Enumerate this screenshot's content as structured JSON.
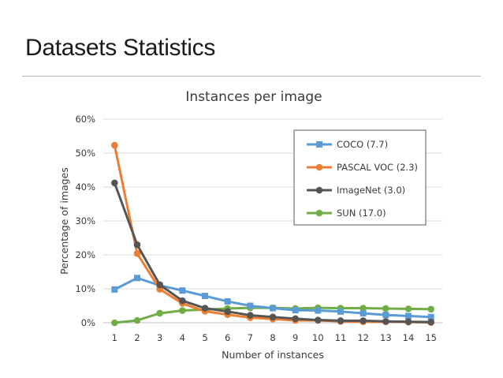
{
  "slide": {
    "title": "Datasets Statistics"
  },
  "chart_data": {
    "type": "line",
    "title": "Instances per image",
    "xlabel": "Number of instances",
    "ylabel": "Percentage of images",
    "x": [
      "1",
      "2",
      "3",
      "4",
      "5",
      "6",
      "7",
      "8",
      "9",
      "10",
      "11",
      "12",
      "13",
      "14",
      "15"
    ],
    "ylim": [
      0,
      60
    ],
    "yticks": [
      "0%",
      "10%",
      "20%",
      "30%",
      "40%",
      "50%",
      "60%"
    ],
    "ytick_values": [
      0,
      10,
      20,
      30,
      40,
      50,
      60
    ],
    "grid": true,
    "legend_position": "top-right",
    "series": [
      {
        "name": "COCO (7.7)",
        "color": "#5b9bd5",
        "marker": "square",
        "values": [
          9.8,
          13.2,
          11.0,
          9.5,
          7.9,
          6.3,
          5.0,
          4.3,
          3.7,
          3.6,
          3.3,
          2.8,
          2.3,
          2.0,
          1.7
        ]
      },
      {
        "name": "PASCAL VOC (2.3)",
        "color": "#ed7d31",
        "marker": "circle",
        "values": [
          52.3,
          20.4,
          9.9,
          5.7,
          3.4,
          2.4,
          1.5,
          1.1,
          0.7,
          0.7,
          0.4,
          0.3,
          0.3,
          0.2,
          0.1
        ]
      },
      {
        "name": "ImageNet (3.0)",
        "color": "#555555",
        "marker": "circle",
        "values": [
          41.2,
          23.0,
          11.2,
          6.5,
          4.3,
          3.3,
          2.2,
          1.7,
          1.2,
          0.8,
          0.6,
          0.6,
          0.4,
          0.3,
          0.2
        ]
      },
      {
        "name": "SUN (17.0)",
        "color": "#70ad47",
        "marker": "circle",
        "values": [
          0.0,
          0.7,
          2.8,
          3.6,
          3.9,
          4.2,
          4.4,
          4.4,
          4.2,
          4.4,
          4.3,
          4.3,
          4.2,
          4.1,
          4.0
        ]
      }
    ]
  }
}
